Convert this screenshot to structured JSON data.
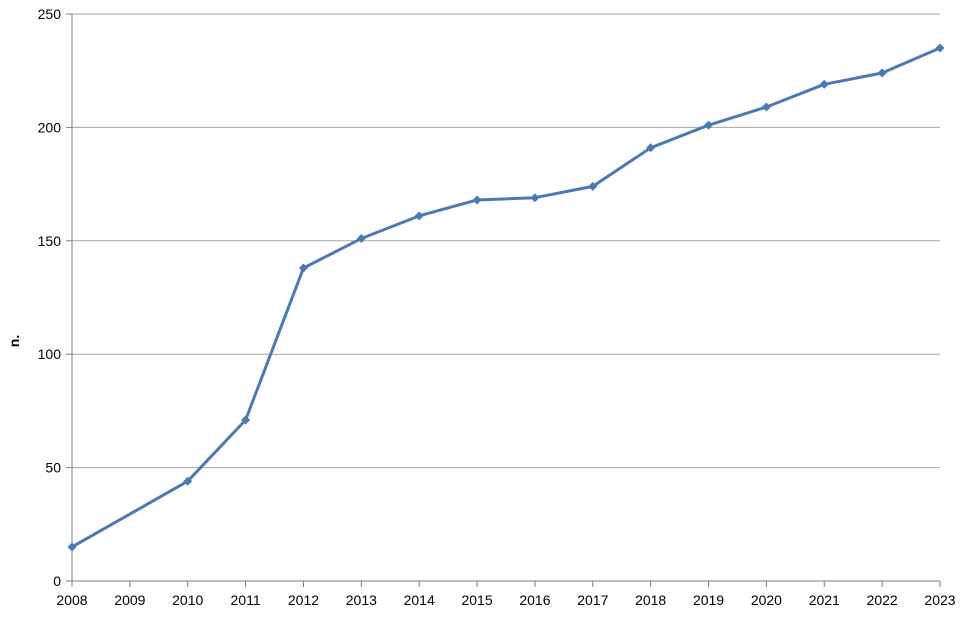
{
  "chart_data": {
    "type": "line",
    "title": "",
    "xlabel": "",
    "ylabel": "n.",
    "categories": [
      "2008",
      "2009",
      "2010",
      "2011",
      "2012",
      "2013",
      "2014",
      "2015",
      "2016",
      "2017",
      "2018",
      "2019",
      "2020",
      "2021",
      "2022",
      "2023"
    ],
    "series": [
      {
        "x": [
          2008,
          2010,
          2011,
          2012,
          2013,
          2014,
          2015,
          2016,
          2017,
          2018,
          2019,
          2020,
          2021,
          2022,
          2023
        ],
        "values": [
          15,
          44,
          71,
          138,
          151,
          161,
          168,
          169,
          174,
          191,
          201,
          209,
          219,
          224,
          235
        ]
      }
    ],
    "ylim": [
      0,
      250
    ],
    "yticks": [
      0,
      50,
      100,
      150,
      200,
      250
    ],
    "xlim": [
      2008,
      2023
    ],
    "grid": true,
    "legend": "none",
    "colors": {
      "line": "#4a7ab5",
      "grid": "#a6a6a6",
      "axis": "#7f7f7f"
    }
  }
}
